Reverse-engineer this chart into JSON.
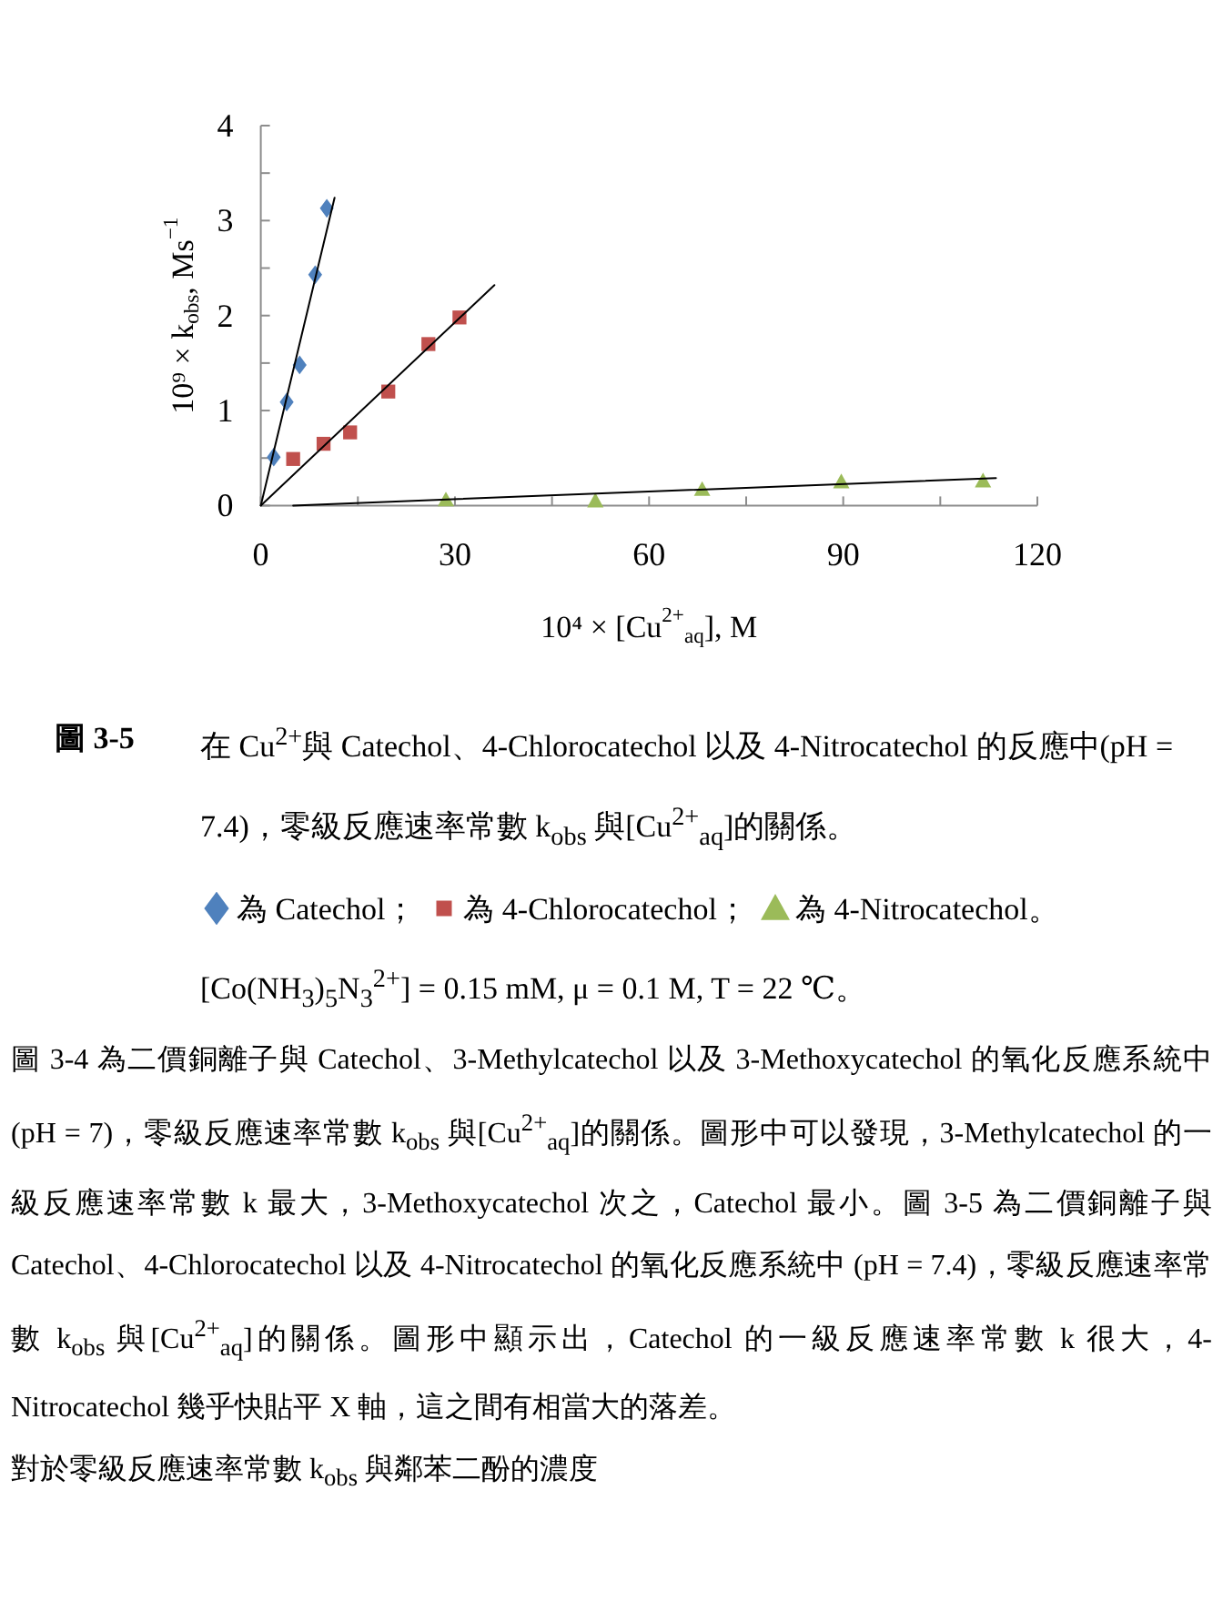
{
  "chart_data": {
    "type": "scatter",
    "title": "圖 3-5",
    "subtitle": "在 Cu$^{2+}$與 Catechol、4-Chlorocatechol 以及 4-Nitrocatechol 的反應中(pH = 7.4)，零級反應速率常數 k$_{obs}$ 與[Cu$^{2+}$$_{aq}$]的關係。",
    "xlabel": "10⁴ × [Cu$^{2+}$$_{aq}$], M",
    "ylabel": "10⁹ × k$_{obs}$, Ms$^{−1}$",
    "xlim": [
      0,
      120
    ],
    "ylim": [
      0,
      4
    ],
    "xticks": [
      0,
      {
        "value": 15,
        "label": null
      },
      30,
      {
        "value": 45,
        "label": null
      },
      60,
      {
        "value": 75,
        "label": null
      },
      90,
      {
        "value": 105,
        "label": null
      },
      120
    ],
    "yticks": [
      0,
      {
        "value": 0.5,
        "label": null
      },
      1,
      {
        "value": 1.5,
        "label": null
      },
      2,
      {
        "value": 2.5,
        "label": null
      },
      3,
      {
        "value": 3.5,
        "label": null
      },
      4
    ],
    "legend": "bottom",
    "series": [
      {
        "name": "為 Catechol；",
        "color": "#4f81bd",
        "marker": "diamond",
        "x": [
          2,
          4,
          6,
          8.4,
          10.2
        ],
        "values": [
          0.51,
          1.09,
          1.48,
          2.43,
          3.13
        ]
      },
      {
        "name": "為 4-Chlorocatechol；",
        "color": "#c0504d",
        "marker": "square",
        "x": [
          5,
          9.7,
          13.8,
          19.7,
          25.9,
          30.7
        ],
        "values": [
          0.49,
          0.65,
          0.77,
          1.2,
          1.7,
          1.98
        ]
      },
      {
        "name": "為 4-Nitrocatechol。",
        "color": "#9bbb59",
        "marker": "triangle",
        "x": [
          28.6,
          51.7,
          68.2,
          89.7,
          111.6
        ],
        "values": [
          0.06,
          0.05,
          0.17,
          0.25,
          0.26
        ]
      },
      {
        "type": "line",
        "color": "#000000",
        "marker": "none",
        "x": [
          0,
          11.4
        ],
        "values": [
          0,
          3.24
        ]
      },
      {
        "type": "line",
        "color": "#000000",
        "marker": "none",
        "x": [
          0,
          36.1
        ],
        "values": [
          0,
          2.32
        ]
      },
      {
        "type": "line",
        "color": "#000000",
        "marker": "none",
        "x": [
          5,
          113.6
        ],
        "values": [
          0,
          0.29
        ]
      }
    ],
    "annotations": [
      "[Co(NH$_{3}$)$_{5}$N$_{3}$$^{2+}$] = 0.15 mM, μ = 0.1 M, T = 22 ℃。",
      "圖 3-4 為二價銅離子與 Catechol、3-Methylcatechol 以及 3-Methoxycatechol 的氧化反應系統中 (pH = 7)，零級反應速率常數 k$_{obs}$ 與[Cu$^{2+}$$_{aq}$]的關係。圖形中可以發現，3-Methylcatechol 的一級反應速率常數 k 最大，3-Methoxycatechol 次之，Catechol 最小。圖 3-5 為二價銅離子與 Catechol、4-Chlorocatechol 以及 4-Nitrocatechol 的氧化反應系統中 (pH = 7.4)，零級反應速率常數 k$_{obs}$ 與[Cu$^{2+}$$_{aq}$]的關係。圖形中顯示出，Catechol 的一級反應速率常數 k 很大，4-Nitrocatechol 幾乎快貼平 X 軸，這之間有相當大的落差。",
      "對於零級反應速率常數 k$_{obs}$ 與鄰苯二酚的濃度"
    ]
  }
}
